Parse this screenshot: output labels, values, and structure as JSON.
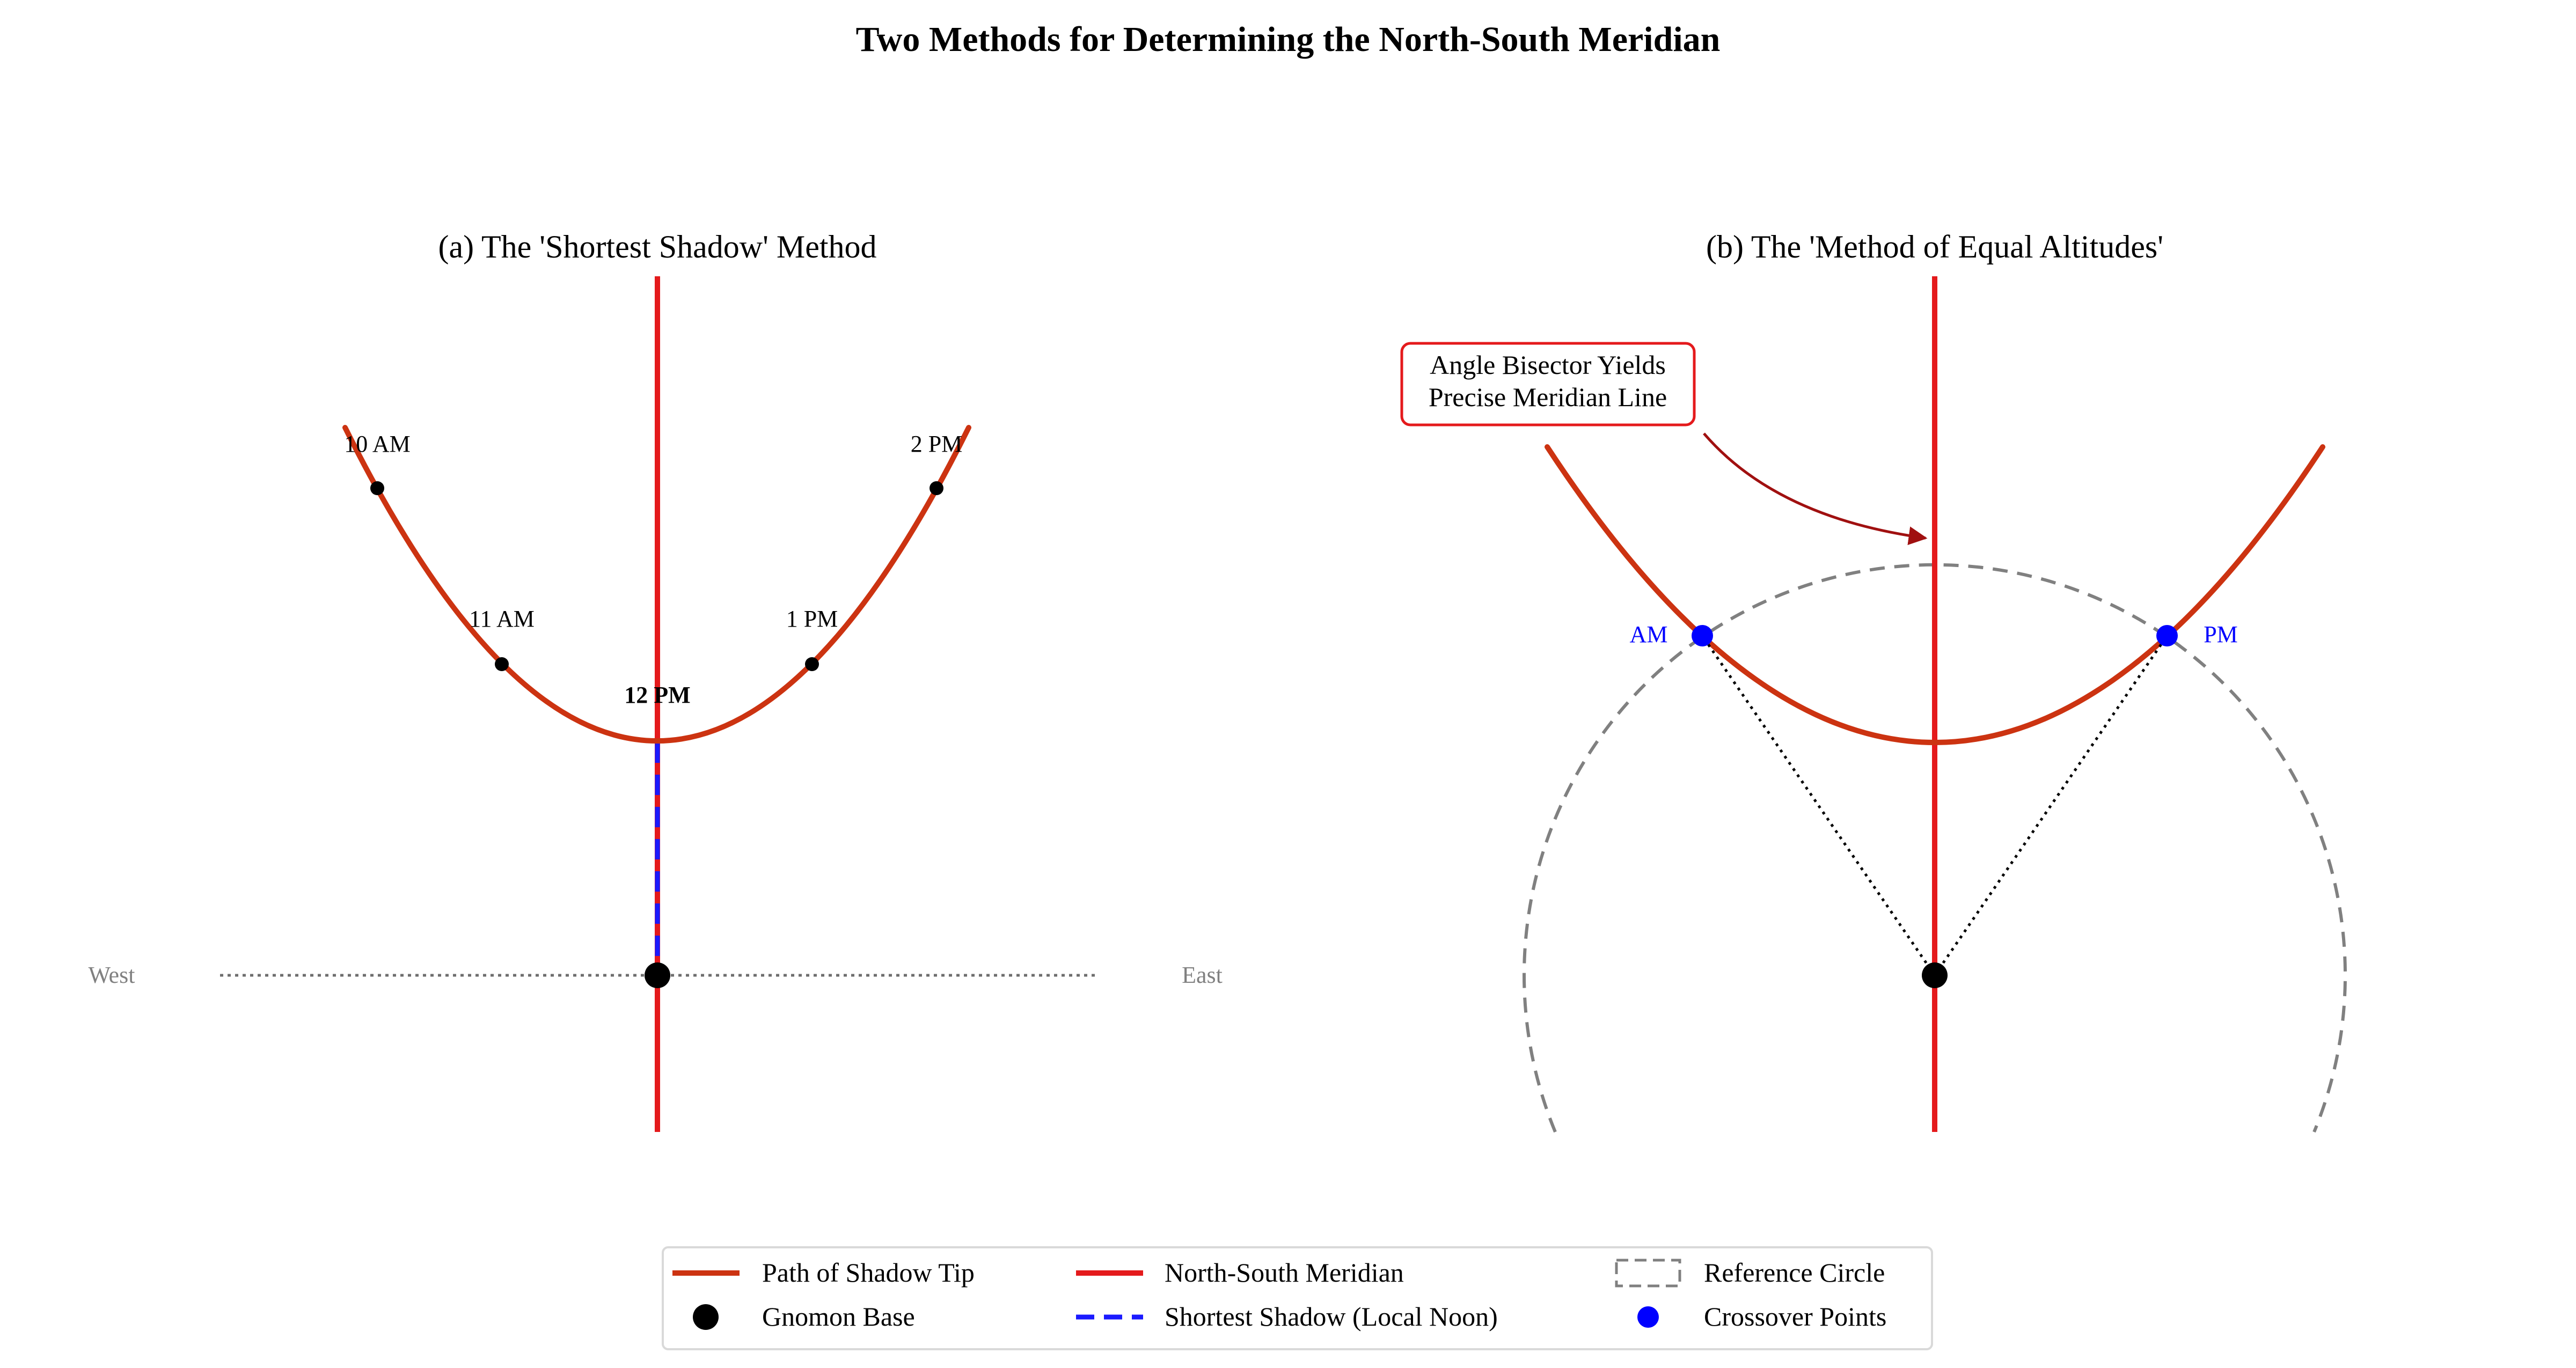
{
  "figure": {
    "title": "Two Methods for Determining the North-South Meridian"
  },
  "panel_a": {
    "title": "(a) The 'Shortest Shadow' Method",
    "west_label": "West",
    "east_label": "East",
    "time_labels": [
      {
        "label": "10 AM",
        "bold": false
      },
      {
        "label": "11 AM",
        "bold": false
      },
      {
        "label": "12 PM",
        "bold": true
      },
      {
        "label": "1 PM",
        "bold": false
      },
      {
        "label": "2 PM",
        "bold": false
      }
    ]
  },
  "panel_b": {
    "title": "(b) The 'Method of Equal Altitudes'",
    "annotation_line1": "Angle Bisector Yields",
    "annotation_line2": "Precise Meridian Line",
    "am_label": "AM",
    "pm_label": "PM"
  },
  "legend": {
    "items": [
      {
        "label": "Path of Shadow Tip",
        "kind": "line",
        "color": "#cc3311"
      },
      {
        "label": "Gnomon Base",
        "kind": "dot",
        "color": "#000000"
      },
      {
        "label": "North-South Meridian",
        "kind": "line",
        "color": "#e41a1c"
      },
      {
        "label": "Shortest Shadow (Local Noon)",
        "kind": "dashed-line",
        "color": "#1a1aff"
      },
      {
        "label": "Reference Circle",
        "kind": "dashed-box",
        "color": "#808080"
      },
      {
        "label": "Crossover Points",
        "kind": "dot",
        "color": "#0000ff"
      }
    ]
  },
  "colors": {
    "shadow_path": "#cc3311",
    "meridian": "#e41a1c",
    "shortest_shadow": "#1a1aff",
    "reference_circle": "#808080",
    "crossover": "#0000ff",
    "gnomon": "#000000",
    "annotation_border": "#e41a1c",
    "annotation_arrow": "#a01010",
    "muted_text": "#808080"
  }
}
